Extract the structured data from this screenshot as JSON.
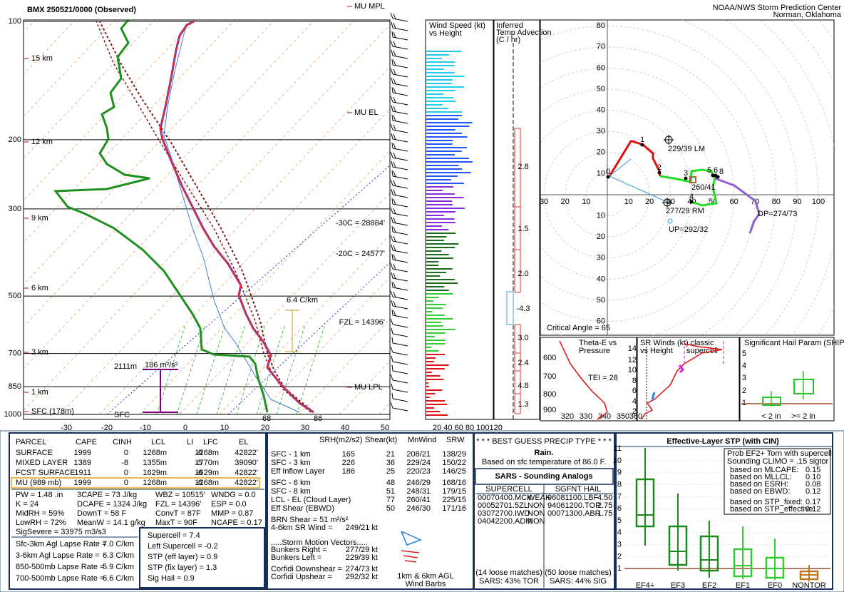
{
  "header": {
    "title": "BMX   250521/0000  (Observed)",
    "org": "NOAA/NWS Storm Prediction Center",
    "location": "Norman, Oklahoma"
  },
  "skewt": {
    "pressure_labels": [
      "100",
      "200",
      "300",
      "500",
      "700",
      "850",
      "1000"
    ],
    "temp_labels": [
      "-30",
      "-20",
      "-10",
      "0",
      "10",
      "20",
      "30",
      "40",
      "50"
    ],
    "height_labels": [
      "15 km",
      "12 km",
      "9 km",
      "6 km",
      "3 km",
      "1 km",
      "SFC (178m)"
    ],
    "annotations": {
      "mu_mpl": "MU MPL",
      "mu_el": "MU EL",
      "m30": "-30C = 28884'",
      "m20": "-20C = 24577'",
      "fzl": "FZL = 14396'",
      "lapse": "6.4 C/km",
      "eff_base": "2111m",
      "eff_srh": "186 m²/s²",
      "sfc": "SFC",
      "dewpoint": "68",
      "temp": "86",
      "mu_lpl": "MU LPL"
    }
  },
  "wind_speed": {
    "title": [
      "Wind Speed (kt)",
      "vs Height"
    ],
    "x_labels": "20 40 60 80 100120"
  },
  "temp_advection": {
    "title": [
      "Inferred",
      "Temp Advection",
      "(C / hr)"
    ],
    "values": [
      "2.8",
      "1.5",
      "2.0",
      "-4.3",
      "3.0",
      "2.4",
      "4.8",
      "1.3"
    ]
  },
  "hodograph": {
    "x_labels_left": [
      "30",
      "20",
      "10"
    ],
    "x_labels_right": [
      "10",
      "20",
      "30",
      "40",
      "50",
      "60",
      "70",
      "80",
      "90",
      "100"
    ],
    "y_labels_up": [
      "80",
      "70",
      "60",
      "50",
      "40",
      "30",
      "20",
      "10"
    ],
    "y_labels_down": [
      "10",
      "20",
      "30",
      "40",
      "50",
      "60"
    ],
    "points": [
      "0",
      "1",
      "2",
      "3",
      "4",
      "5",
      "6",
      "8"
    ],
    "lm": "229/39 LM",
    "mean": "260/41",
    "rm": "277/29 RM",
    "up": "UP=292/32",
    "dp": "DP=274/73",
    "critical_angle": "Critical Angle = 65"
  },
  "thetae": {
    "title": [
      "Theta-E vs",
      "Pressure"
    ],
    "tei": "TEI = 28",
    "y_labels": [
      "600",
      "700",
      "800",
      "900"
    ],
    "x_labels": [
      "320",
      "330",
      "340",
      "350",
      "360"
    ]
  },
  "sr_winds": {
    "title": [
      "SR Winds (kt)",
      "vs Height"
    ],
    "legend": [
      "classic",
      "supercell"
    ],
    "y_labels": [
      "14",
      "12",
      "10",
      "8",
      "6",
      "4",
      "2"
    ]
  },
  "ship": {
    "title": "Significant Hail Param (SHIP)",
    "y_labels": [
      "5",
      "4",
      "3",
      "2",
      "1"
    ],
    "categories": [
      "< 2 in",
      ">= 2 in"
    ]
  },
  "parcels": {
    "columns": [
      "PARCEL",
      "CAPE",
      "CINH",
      "LCL",
      "LI",
      "LFC",
      "EL"
    ],
    "rows": [
      [
        "SURFACE",
        "1999",
        "0",
        "1268m",
        "-6",
        "1268m",
        "42822'"
      ],
      [
        "MIXED LAYER",
        "1389",
        "-8",
        "1355m",
        "-5",
        "1770m",
        "39090'"
      ],
      [
        "FCST SURFACE",
        "1911",
        "0",
        "1629m",
        "-6",
        "1629m",
        "42822'"
      ],
      [
        "MU  (989 mb)",
        "1999",
        "0",
        "1268m",
        "-6",
        "1268m",
        "42822'"
      ]
    ]
  },
  "indices": [
    [
      "PW = 1.48 .in",
      "3CAPE = 73 J/kg",
      "WBZ = 10515'",
      "WNDG = 0.0"
    ],
    [
      "K = 24",
      "DCAPE = 1324 J/kg",
      "FZL = 14396'",
      "ESP = 0.0"
    ],
    [
      "MidRH = 59%",
      "DownT = 58 F",
      "ConvT = 87F",
      "MMP = 0.87"
    ],
    [
      "LowRH = 72%",
      "MeanW = 14.1 g/kg",
      "MaxT = 90F",
      "NCAPE = 0.17"
    ],
    [
      "SigSevere = 33975 m3/s3"
    ]
  ],
  "lapse_rates": [
    {
      "label": "Sfc-3km Agl Lapse Rate =",
      "value": "7.0 C/km"
    },
    {
      "label": "3-6km Agl Lapse Rate =",
      "value": "6.3 C/km"
    },
    {
      "label": "850-500mb Lapse Rate =",
      "value": "5.9 C/km"
    },
    {
      "label": "700-500mb Lapse Rate =",
      "value": "6.6 C/km"
    }
  ],
  "composite": [
    "Supercell = 7.4",
    "Left Supercell = -0.2",
    "STP (eff layer) = 0.9",
    "STP (fix layer) = 1.3",
    "Sig Hail = 0.9"
  ],
  "kinematics": {
    "columns": [
      "SRH(m2/s2)",
      "Shear(kt)",
      "MnWind",
      "SRW"
    ],
    "rows": [
      {
        "label": "SFC - 1 km",
        "srh": "165",
        "shear": "21",
        "mnwind": "208/21",
        "srw": "138/29"
      },
      {
        "label": "SFC - 3 km",
        "srh": "226",
        "shear": "36",
        "mnwind": "229/24",
        "srw": "150/22"
      },
      {
        "label": "Eff Inflow Layer",
        "srh": "186",
        "shear": "25",
        "mnwind": "220/23",
        "srw": "146/25"
      },
      {
        "label": "SFC - 6 km",
        "shear": "48",
        "mnwind": "246/29",
        "srw": "168/16"
      },
      {
        "label": "SFC - 8 km",
        "shear": "51",
        "mnwind": "248/31",
        "srw": "179/15"
      },
      {
        "label": "LCL - EL (Cloud Layer)",
        "shear": "77",
        "mnwind": "260/41",
        "srw": "225/15"
      },
      {
        "label": "Eff Shear (EBWD)",
        "shear": "50",
        "mnwind": "246/30",
        "srw": "171/16"
      }
    ]
  },
  "storm": {
    "brn": "BRN Shear = 51 m²/s²",
    "sr_wind": {
      "label": "4-6km SR Wind =",
      "value": "249/21 kt"
    },
    "header": ".....Storm Motion Vectors.....",
    "vectors": [
      {
        "label": "Bunkers Right =",
        "value": "277/29 kt"
      },
      {
        "label": "Bunkers Left =",
        "value": "229/39 kt"
      },
      {
        "label": "Corfidi Downshear =",
        "value": "274/73 kt"
      },
      {
        "label": "Corfidi Upshear =",
        "value": "292/32 kt"
      }
    ],
    "barb_note": [
      "1km & 6km AGL",
      "Wind Barbs"
    ]
  },
  "precip": {
    "header": "* * * BEST GUESS PRECIP TYPE * * *",
    "type": "Rain.",
    "basis": "Based on sfc temperature of 86.0 F."
  },
  "sars": {
    "title": "SARS - Sounding Analogs",
    "supercell": {
      "header": "SUPERCELL",
      "matches": [
        {
          "id": "00070400.MCK",
          "cat": "WEAK"
        },
        {
          "id": "00052701.5ZL",
          "cat": "NON"
        },
        {
          "id": "03072700.IWD",
          "cat": "NON"
        },
        {
          "id": "04042200.ADM",
          "cat": "NON"
        }
      ],
      "loose": "(14 loose matches)",
      "summary": "SARS: 43% TOR"
    },
    "hail": {
      "header": "SGFNT HAIL",
      "matches": [
        {
          "id": "96081100.LBF",
          "cat": "4.50"
        },
        {
          "id": "94061200.TOP",
          "cat": "2.75"
        },
        {
          "id": "00071300.ABR",
          "cat": "1.75"
        }
      ],
      "loose": "(50 loose matches)",
      "summary": "SARS: 44% SIG"
    }
  },
  "stp": {
    "title": "Effective-Layer STP (with CIN)",
    "y_labels": [
      "11",
      "10",
      "9",
      "8",
      "7",
      "6",
      "5",
      "4",
      "3",
      "2",
      "1"
    ],
    "categories": [
      "EF4+",
      "EF3",
      "EF2",
      "EF1",
      "EF0",
      "NONTOR"
    ],
    "prob": {
      "title": [
        "Prob EF2+ Torn with supercell",
        "Sounding CLIMO = .15 sigtor"
      ],
      "rows": [
        {
          "label": "based on MLCAPE:",
          "value": "0.15"
        },
        {
          "label": "based on MLLCL:",
          "value": "0.10"
        },
        {
          "label": "based on ESRH:",
          "value": "0.08"
        },
        {
          "label": "based on EBWD:",
          "value": "0.12"
        },
        {
          "label": "based on STP_fixed:",
          "value": "0.17"
        },
        {
          "label": "based on STP_effective:",
          "value": "0.12"
        }
      ]
    }
  }
}
